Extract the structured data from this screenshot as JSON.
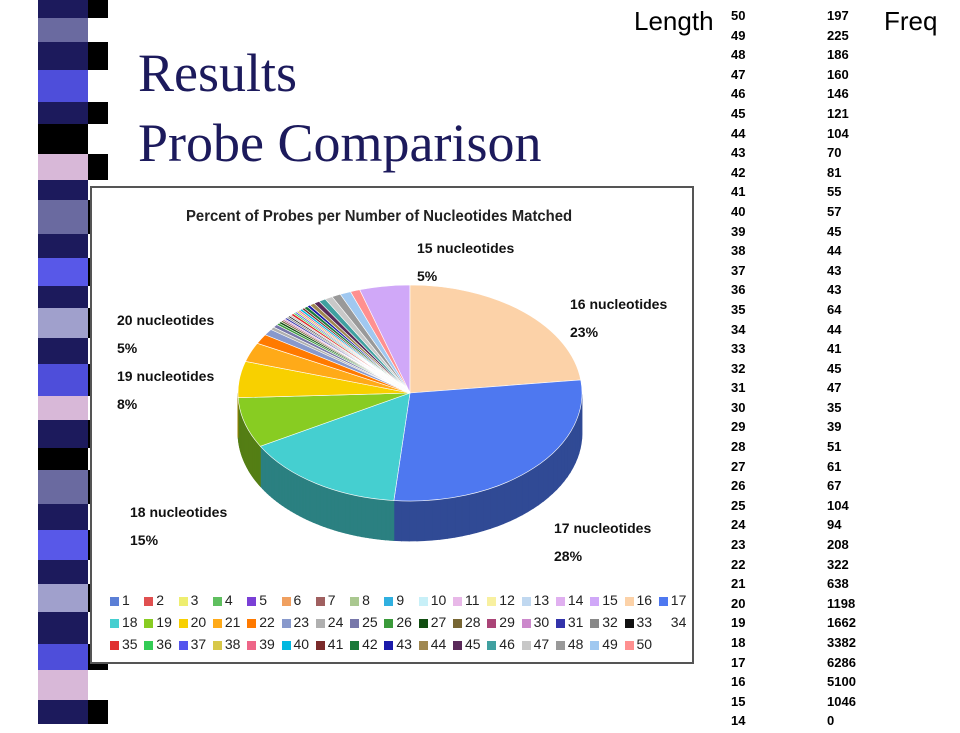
{
  "slide": {
    "title_line1": "Results",
    "title_line2": "Probe Comparison",
    "col_length": "Length",
    "col_freq": "Freq"
  },
  "table": [
    {
      "length": "50",
      "freq": "197"
    },
    {
      "length": "49",
      "freq": "225"
    },
    {
      "length": "48",
      "freq": "186"
    },
    {
      "length": "47",
      "freq": "160"
    },
    {
      "length": "46",
      "freq": "146"
    },
    {
      "length": "45",
      "freq": "121"
    },
    {
      "length": "44",
      "freq": "104"
    },
    {
      "length": "43",
      "freq": "70"
    },
    {
      "length": "42",
      "freq": "81"
    },
    {
      "length": "41",
      "freq": "55"
    },
    {
      "length": "40",
      "freq": "57"
    },
    {
      "length": "39",
      "freq": "45"
    },
    {
      "length": "38",
      "freq": "44"
    },
    {
      "length": "37",
      "freq": "43"
    },
    {
      "length": "36",
      "freq": "43"
    },
    {
      "length": "35",
      "freq": "64"
    },
    {
      "length": "34",
      "freq": "44"
    },
    {
      "length": "33",
      "freq": "41"
    },
    {
      "length": "32",
      "freq": "45"
    },
    {
      "length": "31",
      "freq": "47"
    },
    {
      "length": "30",
      "freq": "35"
    },
    {
      "length": "29",
      "freq": "39"
    },
    {
      "length": "28",
      "freq": "51"
    },
    {
      "length": "27",
      "freq": "61"
    },
    {
      "length": "26",
      "freq": "67"
    },
    {
      "length": "25",
      "freq": "104"
    },
    {
      "length": "24",
      "freq": "94"
    },
    {
      "length": "23",
      "freq": "208"
    },
    {
      "length": "22",
      "freq": "322"
    },
    {
      "length": "21",
      "freq": "638"
    },
    {
      "length": "20",
      "freq": "1198"
    },
    {
      "length": "19",
      "freq": "1662"
    },
    {
      "length": "18",
      "freq": "3382"
    },
    {
      "length": "17",
      "freq": "6286"
    },
    {
      "length": "16",
      "freq": "5100"
    },
    {
      "length": "15",
      "freq": "1046"
    },
    {
      "length": "14",
      "freq": "0"
    }
  ],
  "chart_data": {
    "type": "pie",
    "title": "Percent of Probes per Number of Nucleotides Matched",
    "categories": [
      "1",
      "2",
      "3",
      "4",
      "5",
      "6",
      "7",
      "8",
      "9",
      "10",
      "11",
      "12",
      "13",
      "14",
      "15",
      "16",
      "17",
      "18",
      "19",
      "20",
      "21",
      "22",
      "23",
      "24",
      "25",
      "26",
      "27",
      "28",
      "29",
      "30",
      "31",
      "32",
      "33",
      "34",
      "35",
      "36",
      "37",
      "38",
      "39",
      "40",
      "41",
      "42",
      "43",
      "44",
      "45",
      "46",
      "47",
      "48",
      "49",
      "50"
    ],
    "values": [
      0,
      0,
      0,
      0,
      0,
      0,
      0,
      0,
      0,
      0,
      0,
      0,
      0,
      0,
      1046,
      5100,
      6286,
      3382,
      1662,
      1198,
      638,
      322,
      208,
      94,
      104,
      67,
      61,
      51,
      39,
      35,
      47,
      45,
      41,
      44,
      64,
      43,
      43,
      44,
      45,
      57,
      55,
      81,
      70,
      104,
      121,
      146,
      160,
      186,
      225,
      197
    ],
    "colors": [
      "#5b7fd6",
      "#e05050",
      "#eeee70",
      "#5fbf5f",
      "#7a3fd6",
      "#f0a060",
      "#a06060",
      "#aac890",
      "#30b0e0",
      "#c8f0f8",
      "#e8b8e8",
      "#f8f0a0",
      "#c0d8f0",
      "#e0b0f0",
      "#d0a8f8",
      "#fcd2a8",
      "#4e78f0",
      "#45cfd0",
      "#88cc22",
      "#f8d000",
      "#ffaa18",
      "#ff7a00",
      "#8899cc",
      "#b0b0b0",
      "#7777aa",
      "#3a9a3a",
      "#114d11",
      "#776633",
      "#aa4477",
      "#cc88cc",
      "#3333aa",
      "#888888",
      "#111111",
      "#c0c0c0",
      "#e03030",
      "#33cc55",
      "#5555ee",
      "#d8c84a",
      "#ee6688",
      "#00b8e0",
      "#7a2a2a",
      "#1a7a3a",
      "#1a1aaa",
      "#a08850",
      "#5a2a5a",
      "#40a0a0",
      "#c8c8c8",
      "#999999",
      "#a0c8f0",
      "#ff9090"
    ],
    "data_labels": [
      {
        "category": "15",
        "line1": "15 nucleotides",
        "line2": "5%"
      },
      {
        "category": "16",
        "line1": "16 nucleotides",
        "line2": "23%"
      },
      {
        "category": "17",
        "line1": "17 nucleotides",
        "line2": "28%"
      },
      {
        "category": "18",
        "line1": "18 nucleotides",
        "line2": "15%"
      },
      {
        "category": "19",
        "line1": "19 nucleotides",
        "line2": "8%"
      },
      {
        "category": "20",
        "line1": "20 nucleotides",
        "line2": "5%"
      }
    ],
    "legend": "bottom",
    "style": "3d"
  }
}
